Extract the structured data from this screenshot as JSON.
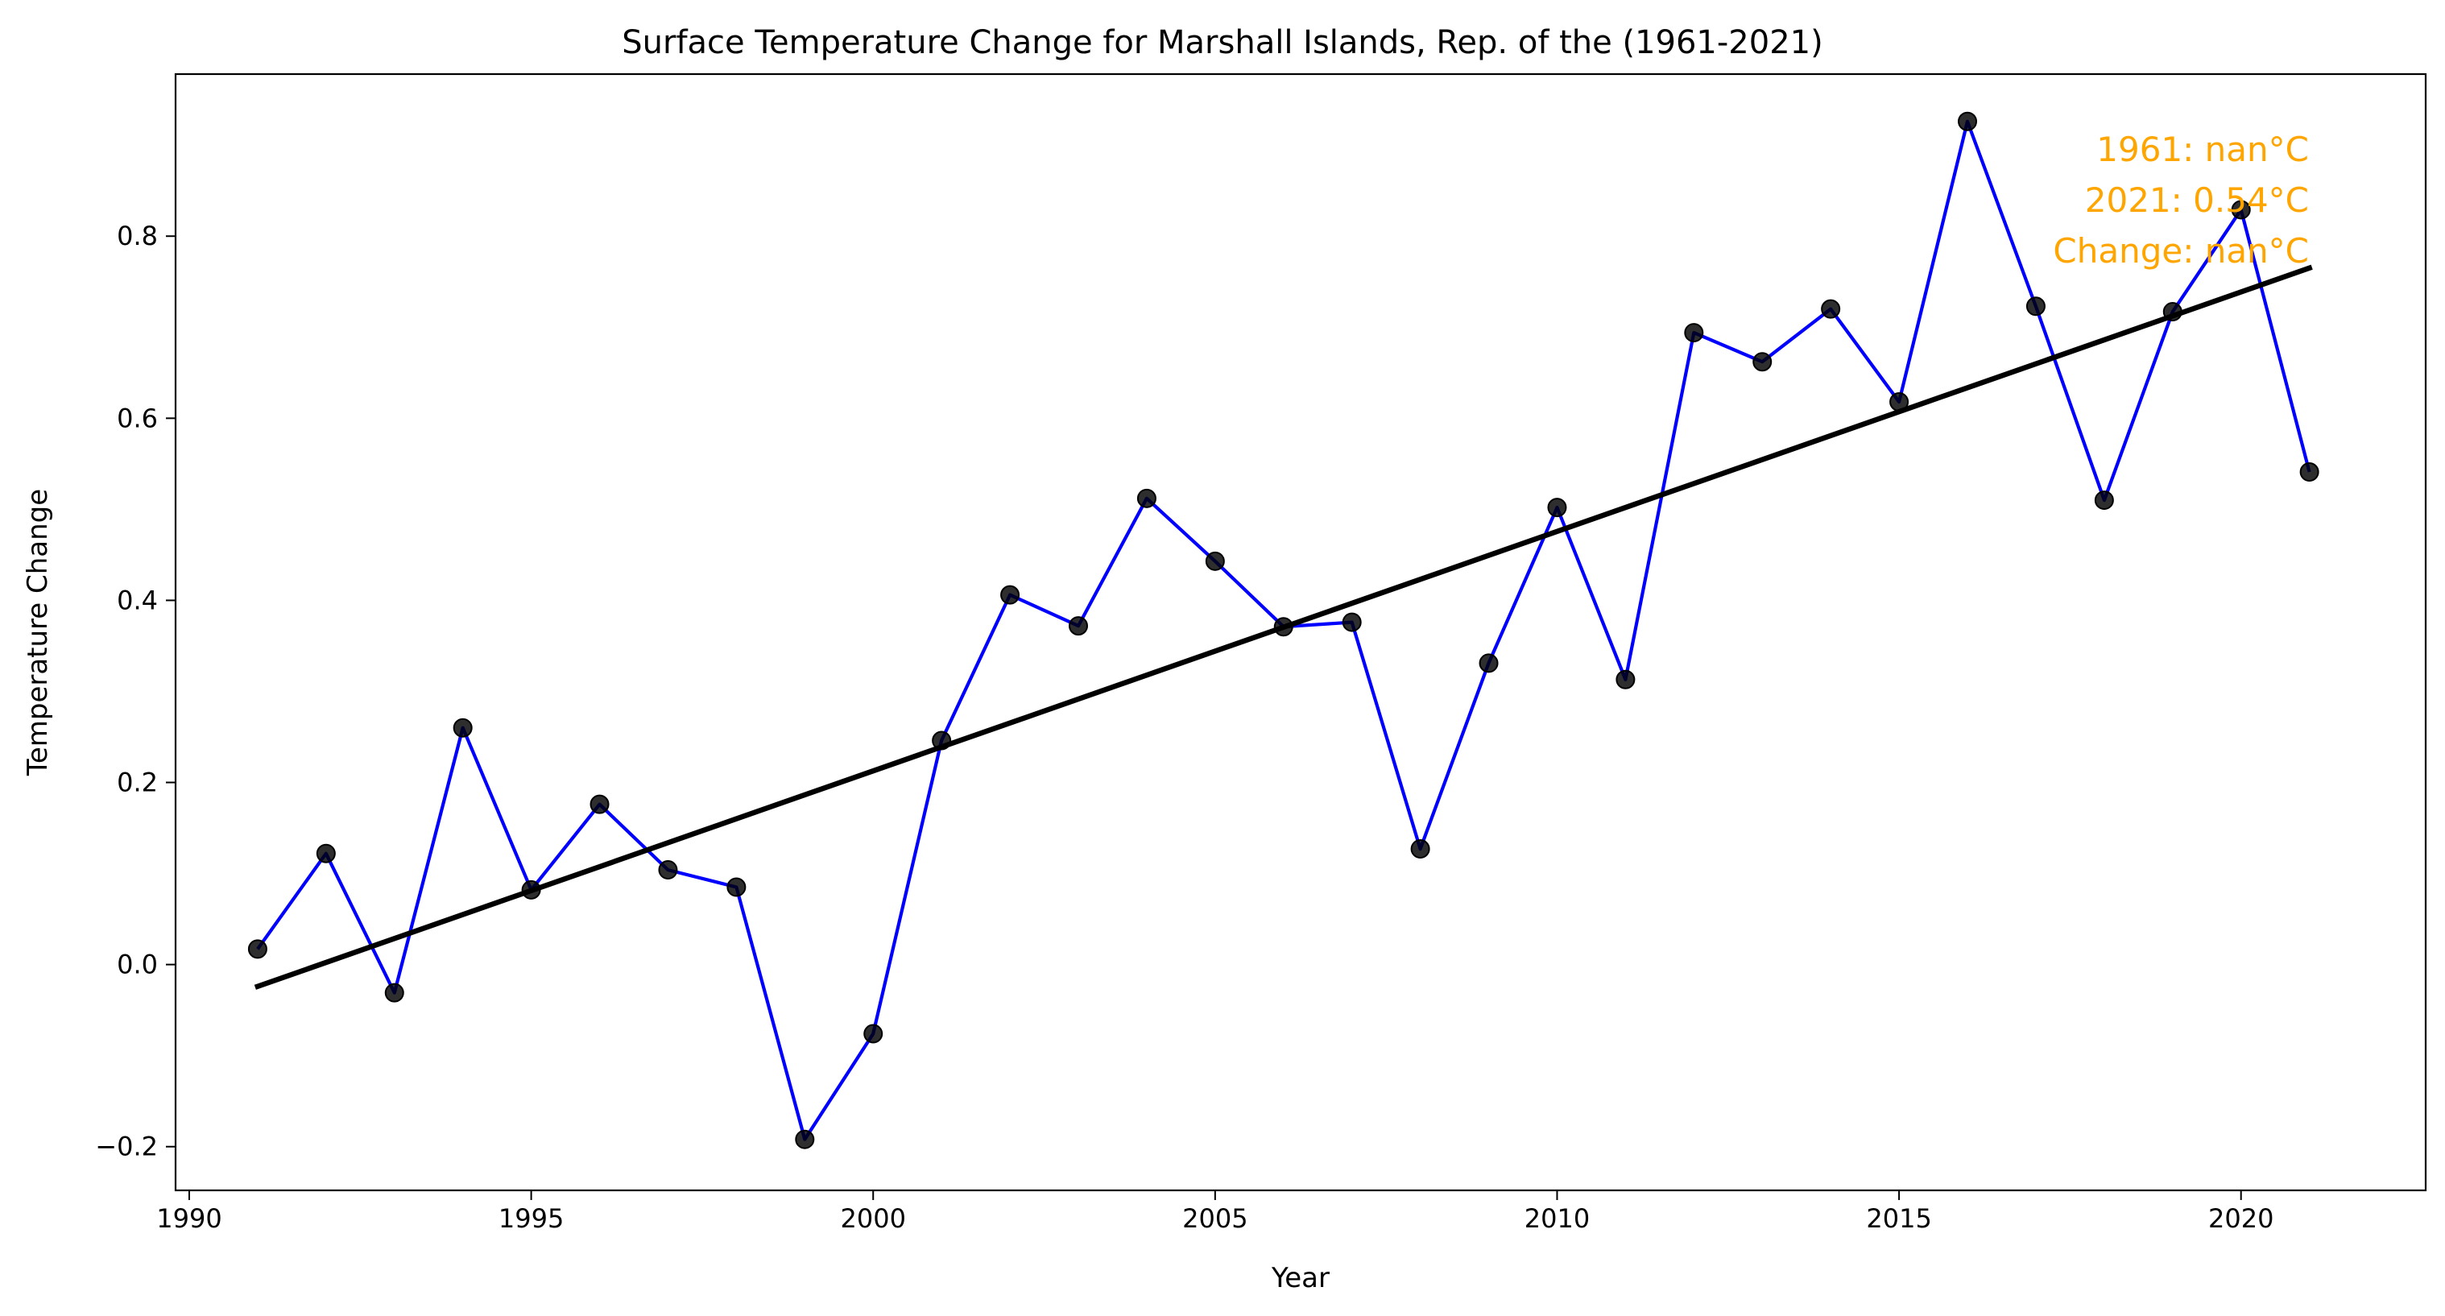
{
  "chart_data": {
    "type": "line",
    "title": "Surface Temperature Change for Marshall Islands, Rep. of the (1961-2021)",
    "xlabel": "Year",
    "ylabel": "Temperature Change",
    "xlim": [
      1989.8,
      2022.7
    ],
    "ylim": [
      -0.248,
      0.978
    ],
    "xticks": [
      1990,
      1995,
      2000,
      2005,
      2010,
      2015,
      2020
    ],
    "xtick_labels": [
      "1990",
      "1995",
      "2000",
      "2005",
      "2010",
      "2015",
      "2020"
    ],
    "yticks": [
      -0.2,
      0.0,
      0.2,
      0.4,
      0.6,
      0.8
    ],
    "ytick_labels": [
      "−0.2",
      "0.0",
      "0.2",
      "0.4",
      "0.6",
      "0.8"
    ],
    "grid": false,
    "series": [
      {
        "type": "line",
        "color": "#0000ff",
        "marker_color": "#000000",
        "x": [
          1991,
          1992,
          1993,
          1994,
          1995,
          1996,
          1997,
          1998,
          1999,
          2000,
          2001,
          2002,
          2003,
          2004,
          2005,
          2006,
          2007,
          2008,
          2009,
          2010,
          2011,
          2012,
          2013,
          2014,
          2015,
          2016,
          2017,
          2018,
          2019,
          2020,
          2021
        ],
        "y": [
          0.017,
          0.122,
          -0.031,
          0.26,
          0.082,
          0.176,
          0.104,
          0.085,
          -0.192,
          -0.076,
          0.246,
          0.406,
          0.372,
          0.512,
          0.443,
          0.371,
          0.376,
          0.127,
          0.331,
          0.502,
          0.313,
          0.694,
          0.662,
          0.72,
          0.618,
          0.926,
          0.723,
          0.51,
          0.717,
          0.829,
          0.541
        ]
      },
      {
        "type": "trend",
        "color": "#000000",
        "x": [
          1991,
          2021
        ],
        "y": [
          -0.024,
          0.765
        ]
      }
    ],
    "annotation": {
      "color": "#ffa500",
      "lines": [
        "1961: nan°C",
        "2021: 0.54°C",
        "Change: nan°C"
      ]
    }
  }
}
